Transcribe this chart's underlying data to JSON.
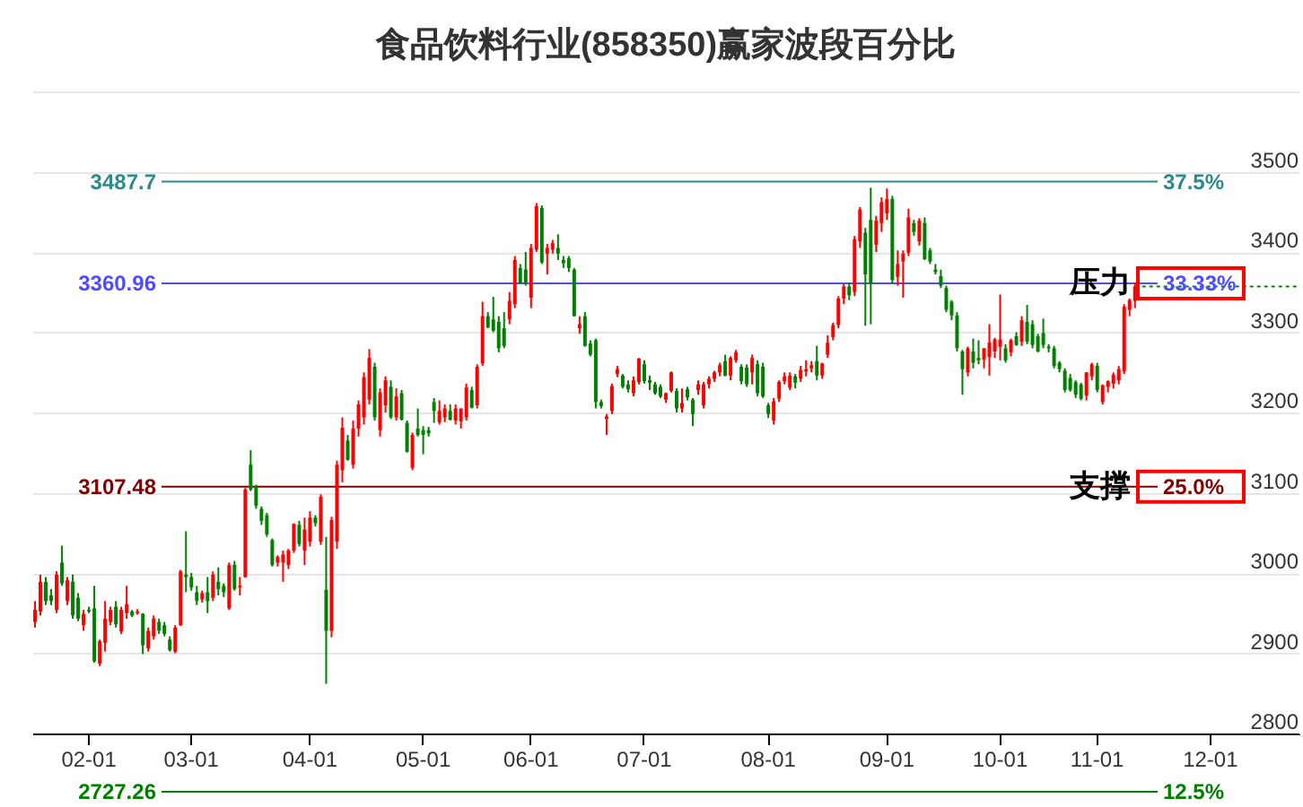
{
  "chart_data": {
    "type": "candlestick",
    "title": "食品饮料行业(858350)赢家波段百分比",
    "categories": [
      null,
      null,
      null,
      null,
      null,
      null,
      null,
      null,
      null,
      null,
      "02-01",
      null,
      null,
      null,
      null,
      null,
      null,
      null,
      null,
      null,
      null,
      null,
      null,
      null,
      null,
      null,
      null,
      null,
      null,
      "03-01",
      null,
      null,
      null,
      null,
      null,
      null,
      null,
      null,
      null,
      null,
      null,
      null,
      null,
      null,
      null,
      null,
      null,
      null,
      null,
      null,
      null,
      "04-01",
      null,
      null,
      null,
      null,
      null,
      null,
      null,
      null,
      null,
      null,
      null,
      null,
      null,
      null,
      null,
      null,
      null,
      null,
      null,
      null,
      "05-01",
      null,
      null,
      null,
      null,
      null,
      null,
      null,
      null,
      null,
      null,
      null,
      null,
      null,
      null,
      null,
      null,
      null,
      null,
      null,
      "06-01",
      null,
      null,
      null,
      null,
      null,
      null,
      null,
      null,
      null,
      null,
      null,
      null,
      null,
      null,
      null,
      null,
      null,
      null,
      null,
      null,
      "07-01",
      null,
      null,
      null,
      null,
      null,
      null,
      null,
      null,
      null,
      null,
      null,
      null,
      null,
      null,
      null,
      null,
      null,
      null,
      null,
      null,
      null,
      null,
      "08-01",
      null,
      null,
      null,
      null,
      null,
      null,
      null,
      null,
      null,
      null,
      null,
      null,
      null,
      null,
      null,
      null,
      null,
      null,
      null,
      null,
      null,
      "09-01",
      null,
      null,
      null,
      null,
      null,
      null,
      null,
      null,
      null,
      null,
      null,
      null,
      null,
      null,
      null,
      null,
      null,
      null,
      null,
      null,
      "10-01",
      null,
      null,
      null,
      null,
      null,
      null,
      null,
      null,
      null,
      null,
      null,
      null,
      null,
      null,
      null,
      null,
      null,
      "11-01",
      null,
      null,
      null,
      null,
      null,
      null,
      null,
      null,
      null,
      null,
      null,
      null,
      null,
      null,
      null,
      null,
      null,
      null,
      null,
      null,
      "12-01",
      null,
      null,
      null,
      null,
      null,
      null,
      null,
      null,
      null,
      null,
      null,
      null,
      null,
      null,
      null,
      null
    ],
    "ohlc": [
      [
        2939,
        2965,
        2932,
        2954
      ],
      [
        2952,
        2998,
        2947,
        2989
      ],
      [
        2989,
        2995,
        2960,
        2965
      ],
      [
        2972,
        2980,
        2960,
        2965
      ],
      [
        2954,
        3002,
        2950,
        2998
      ],
      [
        3013,
        3034,
        2984,
        2987
      ],
      [
        2965,
        2995,
        2960,
        2991
      ],
      [
        2989,
        2998,
        2943,
        2947
      ],
      [
        2969,
        2975,
        2940,
        2943
      ],
      [
        2935,
        2954,
        2928,
        2949
      ],
      [
        2954,
        2958,
        2950,
        2952
      ],
      [
        2956,
        2984,
        2888,
        2890
      ],
      [
        2887,
        2917,
        2884,
        2915
      ],
      [
        2913,
        2965,
        2902,
        2943
      ],
      [
        2939,
        2958,
        2935,
        2954
      ],
      [
        2958,
        2965,
        2932,
        2936
      ],
      [
        2927,
        2958,
        2924,
        2954
      ],
      [
        2950,
        2984,
        2943,
        2961
      ],
      [
        2952,
        2954,
        2945,
        2947
      ],
      [
        2950,
        2955,
        2948,
        2952
      ],
      [
        2949,
        2950,
        2899,
        2910
      ],
      [
        2906,
        2932,
        2902,
        2928
      ],
      [
        2921,
        2947,
        2917,
        2943
      ],
      [
        2939,
        2943,
        2924,
        2928
      ],
      [
        2935,
        2939,
        2921,
        2924
      ],
      [
        2917,
        2921,
        2902,
        2904
      ],
      [
        2902,
        2935,
        2900,
        2932
      ],
      [
        2935,
        3004,
        2934,
        3002
      ],
      [
        2998,
        3052,
        2976,
        2995
      ],
      [
        2995,
        3000,
        2978,
        2982
      ],
      [
        2976,
        2984,
        2960,
        2965
      ],
      [
        2967,
        2978,
        2963,
        2975
      ],
      [
        2976,
        2995,
        2950,
        2965
      ],
      [
        2969,
        3002,
        2965,
        2998
      ],
      [
        2989,
        3007,
        2972,
        2980
      ],
      [
        2984,
        2987,
        2970,
        2976
      ],
      [
        2956,
        3013,
        2954,
        3010
      ],
      [
        3010,
        3015,
        2978,
        2980
      ],
      [
        2982,
        2995,
        2972,
        2984
      ],
      [
        2995,
        3106,
        2994,
        3104
      ],
      [
        3135,
        3153,
        3102,
        3104
      ],
      [
        3106,
        3110,
        3080,
        3084
      ],
      [
        3080,
        3083,
        3060,
        3065
      ],
      [
        3072,
        3075,
        3045,
        3048
      ],
      [
        3041,
        3043,
        3008,
        3010
      ],
      [
        3013,
        3022,
        3008,
        3020
      ],
      [
        3013,
        3028,
        2989,
        3023
      ],
      [
        3010,
        3030,
        3005,
        3028
      ],
      [
        3028,
        3062,
        3025,
        3061
      ],
      [
        3060,
        3065,
        3033,
        3036
      ],
      [
        3028,
        3069,
        3010,
        3054
      ],
      [
        3039,
        3077,
        3033,
        3069
      ],
      [
        3069,
        3072,
        3058,
        3062
      ],
      [
        3039,
        3098,
        3035,
        3095
      ],
      [
        2979,
        3045,
        2862,
        2928
      ],
      [
        2928,
        3070,
        2920,
        3066
      ],
      [
        3039,
        3140,
        3030,
        3135
      ],
      [
        3128,
        3194,
        3113,
        3181
      ],
      [
        3165,
        3172,
        3140,
        3141
      ],
      [
        3135,
        3190,
        3130,
        3180
      ],
      [
        3180,
        3215,
        3170,
        3210
      ],
      [
        3194,
        3250,
        3185,
        3244
      ],
      [
        3216,
        3279,
        3210,
        3268
      ],
      [
        3257,
        3262,
        3190,
        3194
      ],
      [
        3178,
        3230,
        3170,
        3225
      ],
      [
        3209,
        3245,
        3200,
        3240
      ],
      [
        3232,
        3240,
        3192,
        3194
      ],
      [
        3194,
        3230,
        3190,
        3220
      ],
      [
        3224,
        3228,
        3190,
        3191
      ],
      [
        3187,
        3190,
        3150,
        3151
      ],
      [
        3131,
        3175,
        3128,
        3172
      ],
      [
        3180,
        3205,
        3170,
        3172
      ],
      [
        3178,
        3183,
        3148,
        3172
      ],
      [
        3178,
        3182,
        3170,
        3174
      ],
      [
        3213,
        3218,
        3187,
        3202
      ],
      [
        3188,
        3215,
        3185,
        3202
      ],
      [
        3194,
        3210,
        3188,
        3205
      ],
      [
        3202,
        3210,
        3190,
        3191
      ],
      [
        3190,
        3210,
        3185,
        3205
      ],
      [
        3189,
        3205,
        3180,
        3205
      ],
      [
        3194,
        3236,
        3190,
        3231
      ],
      [
        3228,
        3232,
        3205,
        3206
      ],
      [
        3209,
        3260,
        3205,
        3257
      ],
      [
        3261,
        3338,
        3258,
        3320
      ],
      [
        3320,
        3325,
        3305,
        3306
      ],
      [
        3316,
        3344,
        3300,
        3302
      ],
      [
        3313,
        3320,
        3275,
        3280
      ],
      [
        3305,
        3325,
        3280,
        3283
      ],
      [
        3316,
        3350,
        3310,
        3339
      ],
      [
        3335,
        3395,
        3330,
        3390
      ],
      [
        3380,
        3385,
        3360,
        3361
      ],
      [
        3378,
        3400,
        3358,
        3361
      ],
      [
        3343,
        3410,
        3330,
        3405
      ],
      [
        3403,
        3461,
        3400,
        3457
      ],
      [
        3455,
        3458,
        3385,
        3387
      ],
      [
        3398,
        3410,
        3372,
        3405
      ],
      [
        3403,
        3415,
        3398,
        3411
      ],
      [
        3405,
        3422,
        3390,
        3398
      ],
      [
        3390,
        3395,
        3380,
        3386
      ],
      [
        3392,
        3395,
        3375,
        3380
      ],
      [
        3378,
        3380,
        3320,
        3320
      ],
      [
        3305,
        3320,
        3298,
        3310
      ],
      [
        3320,
        3325,
        3282,
        3283
      ],
      [
        3286,
        3290,
        3270,
        3272
      ],
      [
        3290,
        3292,
        3205,
        3213
      ],
      [
        3213,
        3216,
        3205,
        3208
      ],
      [
        3192,
        3198,
        3172,
        3195
      ],
      [
        3202,
        3236,
        3198,
        3233
      ],
      [
        3248,
        3258,
        3244,
        3254
      ],
      [
        3246,
        3248,
        3230,
        3232
      ],
      [
        3235,
        3240,
        3225,
        3229
      ],
      [
        3224,
        3245,
        3220,
        3240
      ],
      [
        3238,
        3268,
        3235,
        3267
      ],
      [
        3260,
        3265,
        3236,
        3239
      ],
      [
        3240,
        3246,
        3228,
        3237
      ],
      [
        3235,
        3238,
        3222,
        3224
      ],
      [
        3232,
        3235,
        3218,
        3220
      ],
      [
        3216,
        3225,
        3212,
        3224
      ],
      [
        3227,
        3251,
        3225,
        3250
      ],
      [
        3227,
        3230,
        3200,
        3205
      ],
      [
        3205,
        3230,
        3200,
        3212
      ],
      [
        3229,
        3232,
        3215,
        3219
      ],
      [
        3216,
        3218,
        3183,
        3198
      ],
      [
        3228,
        3240,
        3222,
        3235
      ],
      [
        3209,
        3238,
        3205,
        3235
      ],
      [
        3235,
        3245,
        3230,
        3242
      ],
      [
        3242,
        3252,
        3238,
        3250
      ],
      [
        3250,
        3262,
        3245,
        3259
      ],
      [
        3264,
        3272,
        3245,
        3246
      ],
      [
        3246,
        3270,
        3240,
        3268
      ],
      [
        3265,
        3278,
        3262,
        3275
      ],
      [
        3257,
        3260,
        3235,
        3239
      ],
      [
        3256,
        3260,
        3232,
        3235
      ],
      [
        3250,
        3272,
        3235,
        3268
      ],
      [
        3260,
        3265,
        3220,
        3224
      ],
      [
        3257,
        3262,
        3218,
        3220
      ],
      [
        3209,
        3212,
        3193,
        3198
      ],
      [
        3190,
        3218,
        3185,
        3214
      ],
      [
        3217,
        3240,
        3213,
        3238
      ],
      [
        3239,
        3250,
        3235,
        3245
      ],
      [
        3231,
        3250,
        3228,
        3246
      ],
      [
        3245,
        3248,
        3230,
        3237
      ],
      [
        3242,
        3258,
        3238,
        3253
      ],
      [
        3251,
        3265,
        3245,
        3254
      ],
      [
        3255,
        3264,
        3250,
        3259
      ],
      [
        3264,
        3283,
        3240,
        3246
      ],
      [
        3246,
        3262,
        3242,
        3261
      ],
      [
        3272,
        3296,
        3268,
        3287
      ],
      [
        3294,
        3312,
        3290,
        3309
      ],
      [
        3309,
        3345,
        3305,
        3342
      ],
      [
        3342,
        3360,
        3335,
        3357
      ],
      [
        3357,
        3362,
        3340,
        3346
      ],
      [
        3350,
        3420,
        3345,
        3416
      ],
      [
        3413,
        3456,
        3405,
        3453
      ],
      [
        3424,
        3430,
        3308,
        3372
      ],
      [
        3440,
        3480,
        3310,
        3360
      ],
      [
        3409,
        3445,
        3400,
        3439
      ],
      [
        3436,
        3468,
        3425,
        3462
      ],
      [
        3448,
        3479,
        3440,
        3466
      ],
      [
        3466,
        3470,
        3360,
        3365
      ],
      [
        3369,
        3402,
        3358,
        3385
      ],
      [
        3388,
        3402,
        3343,
        3398
      ],
      [
        3399,
        3454,
        3395,
        3443
      ],
      [
        3436,
        3440,
        3420,
        3425
      ],
      [
        3413,
        3442,
        3408,
        3439
      ],
      [
        3436,
        3443,
        3390,
        3391
      ],
      [
        3402,
        3405,
        3385,
        3388
      ],
      [
        3378,
        3385,
        3372,
        3375
      ],
      [
        3370,
        3378,
        3355,
        3358
      ],
      [
        3355,
        3358,
        3325,
        3328
      ],
      [
        3338,
        3340,
        3315,
        3321
      ],
      [
        3321,
        3325,
        3276,
        3280
      ],
      [
        3276,
        3278,
        3222,
        3254
      ],
      [
        3250,
        3282,
        3245,
        3280
      ],
      [
        3276,
        3292,
        3255,
        3262
      ],
      [
        3268,
        3290,
        3260,
        3265
      ],
      [
        3266,
        3280,
        3255,
        3280
      ],
      [
        3269,
        3310,
        3246,
        3287
      ],
      [
        3276,
        3293,
        3268,
        3291
      ],
      [
        3282,
        3347,
        3265,
        3291
      ],
      [
        3280,
        3285,
        3262,
        3265
      ],
      [
        3275,
        3292,
        3270,
        3290
      ],
      [
        3295,
        3300,
        3283,
        3284
      ],
      [
        3288,
        3320,
        3283,
        3315
      ],
      [
        3313,
        3334,
        3285,
        3288
      ],
      [
        3310,
        3315,
        3280,
        3284
      ],
      [
        3295,
        3298,
        3275,
        3276
      ],
      [
        3299,
        3317,
        3280,
        3284
      ],
      [
        3282,
        3285,
        3275,
        3280
      ],
      [
        3280,
        3283,
        3255,
        3258
      ],
      [
        3262,
        3264,
        3250,
        3254
      ],
      [
        3252,
        3255,
        3225,
        3228
      ],
      [
        3243,
        3248,
        3226,
        3228
      ],
      [
        3238,
        3240,
        3218,
        3222
      ],
      [
        3235,
        3237,
        3215,
        3217
      ],
      [
        3221,
        3250,
        3215,
        3250
      ],
      [
        3245,
        3262,
        3240,
        3260
      ],
      [
        3258,
        3262,
        3225,
        3228
      ],
      [
        3213,
        3235,
        3210,
        3234
      ],
      [
        3232,
        3240,
        3225,
        3239
      ],
      [
        3236,
        3250,
        3230,
        3247
      ],
      [
        3240,
        3258,
        3235,
        3254
      ],
      [
        3251,
        3335,
        3248,
        3332
      ],
      [
        3328,
        3342,
        3320,
        3340
      ],
      [
        3339,
        3362,
        3330,
        3357
      ],
      null,
      null,
      null,
      null,
      null,
      null,
      null,
      null,
      null,
      null,
      null,
      null,
      null,
      null,
      null,
      null,
      null,
      null,
      null,
      null,
      null,
      null,
      null,
      null,
      null,
      null,
      null,
      null,
      null,
      null
    ],
    "colors": [
      "#ff0000",
      "#ff0000",
      "#008000",
      "#008000",
      "#ff0000",
      "#008000",
      "#ff0000",
      "#008000",
      "#008000",
      "#ff0000",
      "#008000",
      "#008000",
      "#ff0000",
      "#ff0000",
      "#ff0000",
      "#008000",
      "#ff0000",
      "#ff0000",
      "#008000",
      "#ff0000",
      "#008000",
      "#ff0000",
      "#ff0000",
      "#008000",
      "#008000",
      "#008000",
      "#ff0000",
      "#ff0000",
      "#008000",
      "#008000",
      "#008000",
      "#ff0000",
      "#008000",
      "#ff0000",
      "#008000",
      "#008000",
      "#ff0000",
      "#008000",
      "#ff0000",
      "#ff0000",
      "#008000",
      "#008000",
      "#008000",
      "#008000",
      "#008000",
      "#ff0000",
      "#ff0000",
      "#ff0000",
      "#ff0000",
      "#008000",
      "#ff0000",
      "#ff0000",
      "#008000",
      "#ff0000",
      "#008000",
      "#ff0000",
      "#ff0000",
      "#ff0000",
      "#008000",
      "#ff0000",
      "#ff0000",
      "#ff0000",
      "#ff0000",
      "#008000",
      "#ff0000",
      "#ff0000",
      "#008000",
      "#ff0000",
      "#008000",
      "#008000",
      "#ff0000",
      "#008000",
      "#008000",
      "#008000",
      "#008000",
      "#ff0000",
      "#ff0000",
      "#008000",
      "#ff0000",
      "#ff0000",
      "#ff0000",
      "#008000",
      "#ff0000",
      "#ff0000",
      "#008000",
      "#008000",
      "#008000",
      "#008000",
      "#ff0000",
      "#ff0000",
      "#008000",
      "#008000",
      "#ff0000",
      "#ff0000",
      "#008000",
      "#ff0000",
      "#ff0000",
      "#008000",
      "#008000",
      "#008000",
      "#008000",
      "#ff0000",
      "#008000",
      "#008000",
      "#008000",
      "#008000",
      "#ff0000",
      "#ff0000",
      "#ff0000",
      "#008000",
      "#008000",
      "#ff0000",
      "#ff0000",
      "#008000",
      "#008000",
      "#008000",
      "#008000",
      "#ff0000",
      "#ff0000",
      "#008000",
      "#ff0000",
      "#008000",
      "#008000",
      "#ff0000",
      "#ff0000",
      "#ff0000",
      "#ff0000",
      "#ff0000",
      "#008000",
      "#ff0000",
      "#ff0000",
      "#008000",
      "#008000",
      "#ff0000",
      "#008000",
      "#008000",
      "#008000",
      "#ff0000",
      "#ff0000",
      "#ff0000",
      "#ff0000",
      "#008000",
      "#ff0000",
      "#ff0000",
      "#ff0000",
      "#008000",
      "#ff0000",
      "#ff0000",
      "#ff0000",
      "#ff0000",
      "#ff0000",
      "#008000",
      "#ff0000",
      "#ff0000",
      "#008000",
      "#008000",
      "#ff0000",
      "#ff0000",
      "#ff0000",
      "#008000",
      "#ff0000",
      "#ff0000",
      "#ff0000",
      "#008000",
      "#ff0000",
      "#008000",
      "#008000",
      "#008000",
      "#008000",
      "#008000",
      "#008000",
      "#008000",
      "#008000",
      "#ff0000",
      "#008000",
      "#008000",
      "#ff0000",
      "#ff0000",
      "#ff0000",
      "#ff0000",
      "#008000",
      "#ff0000",
      "#008000",
      "#ff0000",
      "#008000",
      "#008000",
      "#008000",
      "#008000",
      "#008000",
      "#008000",
      "#008000",
      "#008000",
      "#008000",
      "#008000",
      "#008000",
      "#ff0000",
      "#ff0000",
      "#008000",
      "#ff0000",
      "#ff0000",
      "#ff0000",
      "#ff0000",
      "#ff0000",
      "#ff0000",
      "#ff0000",
      null,
      null,
      null,
      null,
      null,
      null,
      null,
      null,
      null,
      null,
      null,
      null,
      null,
      null,
      null,
      null,
      null,
      null,
      null,
      null,
      null,
      null,
      null,
      null,
      null,
      null,
      null,
      null,
      null,
      null
    ],
    "ylim": [
      2800,
      3600
    ],
    "yticks": [
      {
        "value": 3600,
        "label": null
      },
      3500,
      3400,
      3300,
      3200,
      3100,
      3000,
      2900,
      2800
    ],
    "grid": "y",
    "ref_lines": [
      {
        "axis": "y",
        "value": 3487.7,
        "label": "3487.7",
        "color": "#2e8b8b"
      },
      {
        "axis": "y",
        "value": 3360.96,
        "label": "3360.96",
        "color": "#4d4dff"
      },
      {
        "axis": "y",
        "value": 3107.48,
        "label": "3107.48",
        "color": "#800000"
      },
      {
        "axis": "y",
        "value": 2727.26,
        "label": "2727.26",
        "color": "#008000"
      },
      {
        "axis": "y",
        "value": 3357,
        "color": "#008000",
        "line_style": "dotted"
      }
    ],
    "annotations": [
      "37.5%",
      "33.33%",
      "25.0%",
      "12.5%",
      {
        "text": "压力",
        "y": 3360.96
      },
      {
        "text": "支撑",
        "y": 3107.48
      }
    ]
  }
}
